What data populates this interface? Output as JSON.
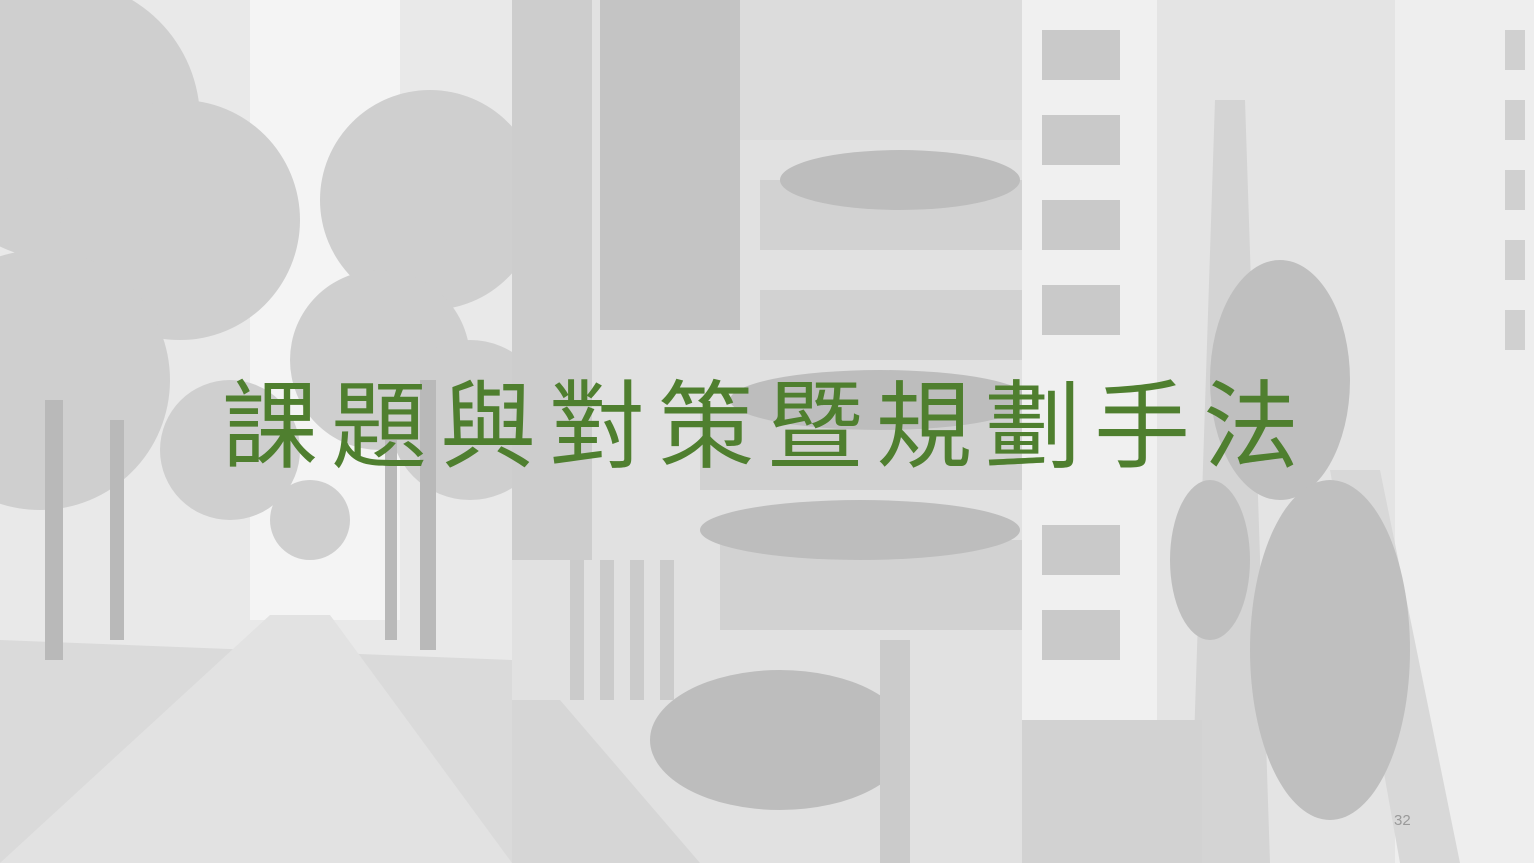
{
  "slide": {
    "title": "課題與對策暨規劃手法",
    "page_number": "32"
  }
}
